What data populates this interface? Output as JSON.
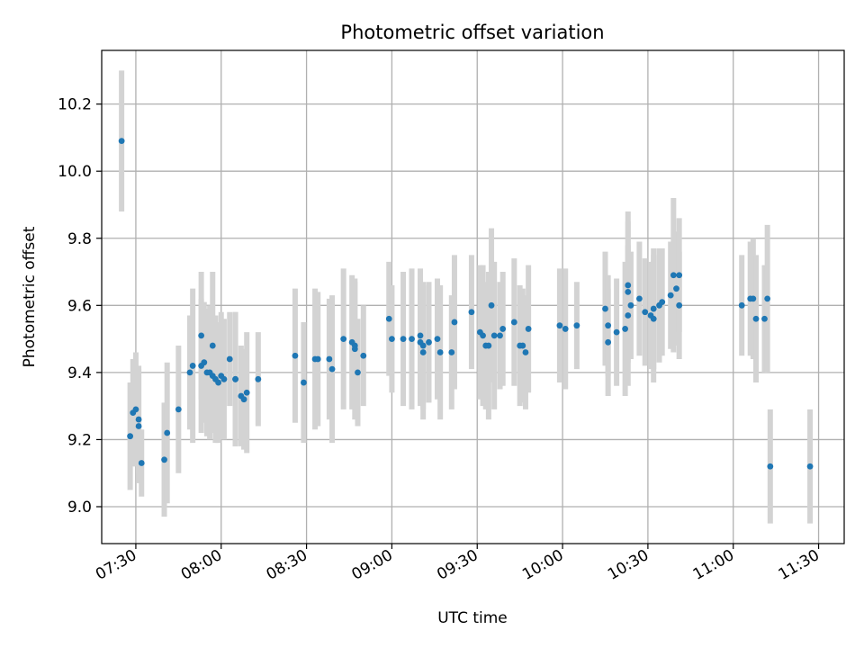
{
  "chart_data": {
    "type": "scatter",
    "title": "Photometric offset variation",
    "xlabel": "UTC time",
    "ylabel": "Photometric offset",
    "x_ticks": [
      "07:30",
      "08:00",
      "08:30",
      "09:00",
      "09:30",
      "10:00",
      "10:30",
      "11:00",
      "11:30"
    ],
    "y_ticks": [
      "9.0",
      "9.2",
      "9.4",
      "9.6",
      "9.8",
      "10.0",
      "10.2"
    ],
    "xlim": [
      "07:18",
      "11:39"
    ],
    "ylim": [
      8.89,
      10.36
    ],
    "grid": true,
    "colors": {
      "point": "#1f77b4",
      "errorbar": "#d3d3d3",
      "grid": "#b0b0b0"
    },
    "x": [
      "07:25",
      "07:28",
      "07:29",
      "07:30",
      "07:31",
      "07:31",
      "07:32",
      "07:40",
      "07:41",
      "07:45",
      "07:49",
      "07:50",
      "07:53",
      "07:53",
      "07:54",
      "07:55",
      "07:56",
      "07:57",
      "07:57",
      "07:58",
      "07:59",
      "08:00",
      "08:01",
      "08:03",
      "08:05",
      "08:05",
      "08:07",
      "08:08",
      "08:09",
      "08:13",
      "08:26",
      "08:29",
      "08:33",
      "08:34",
      "08:38",
      "08:39",
      "08:43",
      "08:46",
      "08:47",
      "08:47",
      "08:48",
      "08:50",
      "08:59",
      "09:00",
      "09:04",
      "09:07",
      "09:10",
      "09:10",
      "09:11",
      "09:11",
      "09:13",
      "09:16",
      "09:17",
      "09:21",
      "09:22",
      "09:28",
      "09:31",
      "09:32",
      "09:33",
      "09:34",
      "09:35",
      "09:36",
      "09:38",
      "09:39",
      "09:43",
      "09:45",
      "09:46",
      "09:47",
      "09:48",
      "09:59",
      "10:01",
      "10:05",
      "10:15",
      "10:16",
      "10:16",
      "10:19",
      "10:22",
      "10:23",
      "10:23",
      "10:23",
      "10:24",
      "10:27",
      "10:29",
      "10:31",
      "10:32",
      "10:32",
      "10:34",
      "10:35",
      "10:38",
      "10:39",
      "10:41",
      "10:40",
      "10:41",
      "11:03",
      "11:06",
      "11:07",
      "11:08",
      "11:11",
      "11:12",
      "11:13",
      "11:27"
    ],
    "y": [
      10.09,
      9.21,
      9.28,
      9.29,
      9.26,
      9.24,
      9.13,
      9.14,
      9.22,
      9.29,
      9.4,
      9.42,
      9.51,
      9.42,
      9.43,
      9.4,
      9.4,
      9.48,
      9.39,
      9.38,
      9.37,
      9.39,
      9.38,
      9.44,
      9.38,
      9.38,
      9.33,
      9.32,
      9.34,
      9.38,
      9.45,
      9.37,
      9.44,
      9.44,
      9.44,
      9.41,
      9.5,
      9.49,
      9.48,
      9.47,
      9.4,
      9.45,
      9.56,
      9.5,
      9.5,
      9.5,
      9.51,
      9.49,
      9.46,
      9.48,
      9.49,
      9.5,
      9.46,
      9.46,
      9.55,
      9.58,
      9.52,
      9.51,
      9.48,
      9.48,
      9.6,
      9.51,
      9.51,
      9.53,
      9.55,
      9.48,
      9.48,
      9.46,
      9.53,
      9.54,
      9.53,
      9.54,
      9.59,
      9.54,
      9.49,
      9.52,
      9.53,
      9.66,
      9.64,
      9.57,
      9.6,
      9.62,
      9.58,
      9.57,
      9.56,
      9.59,
      9.6,
      9.61,
      9.63,
      9.69,
      9.6,
      9.65,
      9.69,
      9.6,
      9.62,
      9.62,
      9.56,
      9.56,
      9.62,
      9.12,
      9.12
    ],
    "err": [
      0.21,
      0.16,
      0.16,
      0.17,
      0.16,
      0.17,
      0.1,
      0.17,
      0.21,
      0.19,
      0.17,
      0.23,
      0.19,
      0.2,
      0.18,
      0.19,
      0.2,
      0.22,
      0.17,
      0.19,
      0.18,
      0.19,
      0.18,
      0.14,
      0.2,
      0.2,
      0.15,
      0.15,
      0.18,
      0.14,
      0.2,
      0.18,
      0.21,
      0.2,
      0.18,
      0.22,
      0.21,
      0.2,
      0.19,
      0.21,
      0.16,
      0.15,
      0.17,
      0.16,
      0.2,
      0.21,
      0.2,
      0.19,
      0.2,
      0.19,
      0.18,
      0.18,
      0.2,
      0.17,
      0.2,
      0.17,
      0.2,
      0.21,
      0.19,
      0.22,
      0.23,
      0.22,
      0.16,
      0.17,
      0.19,
      0.18,
      0.17,
      0.17,
      0.19,
      0.17,
      0.18,
      0.13,
      0.17,
      0.15,
      0.16,
      0.16,
      0.2,
      0.22,
      0.21,
      0.21,
      0.16,
      0.17,
      0.16,
      0.16,
      0.19,
      0.18,
      0.17,
      0.16,
      0.16,
      0.23,
      0.16,
      0.17,
      0.17,
      0.15,
      0.17,
      0.18,
      0.19,
      0.16,
      0.22,
      0.17,
      0.17
    ]
  }
}
